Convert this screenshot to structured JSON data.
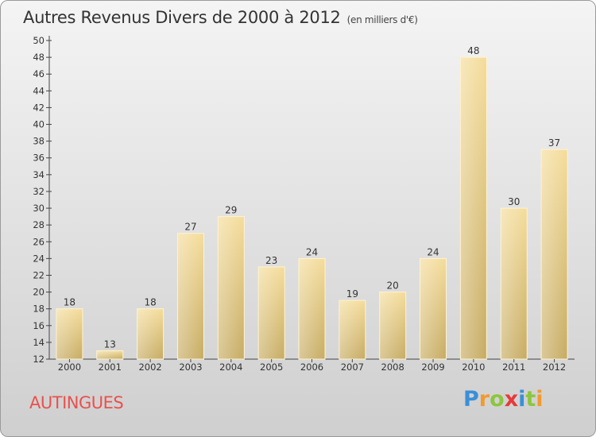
{
  "title": "Autres Revenus Divers de 2000 à 2012",
  "subtitle": "(en milliers d'€)",
  "town": "AUTINGUES",
  "logo": {
    "text": "Proxiti",
    "letters": [
      {
        "ch": "P",
        "color": "#3a8fd8"
      },
      {
        "ch": "r",
        "color": "#f29a2e"
      },
      {
        "ch": "o",
        "color": "#8cc63f"
      },
      {
        "ch": "x",
        "color": "#e63a3a"
      },
      {
        "ch": "i",
        "color": "#3a8fd8"
      },
      {
        "ch": "t",
        "color": "#8cc63f"
      },
      {
        "ch": "i",
        "color": "#f29a2e"
      }
    ]
  },
  "colors": {
    "bar_light": "#f4dc9a",
    "bar_dark": "#c6ab62",
    "axis": "#444444",
    "text": "#333333"
  },
  "chart_data": {
    "type": "bar",
    "title": "Autres Revenus Divers de 2000 à 2012",
    "ylabel": "",
    "xlabel": "",
    "categories": [
      "2000",
      "2001",
      "2002",
      "2003",
      "2004",
      "2005",
      "2006",
      "2007",
      "2008",
      "2009",
      "2010",
      "2011",
      "2012"
    ],
    "values": [
      18,
      13,
      18,
      27,
      29,
      23,
      24,
      19,
      20,
      24,
      48,
      30,
      37
    ],
    "ylim": [
      12,
      50
    ],
    "ytick_step": 2,
    "grid": false
  }
}
